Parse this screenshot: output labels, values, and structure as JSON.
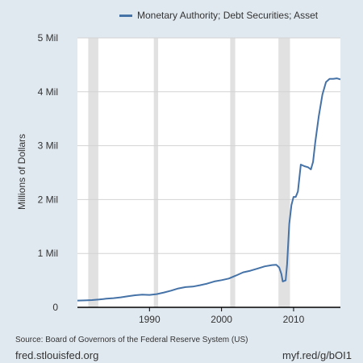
{
  "colors": {
    "background": "#e1e9f0",
    "plot_area": "#ffffff",
    "series": "#4572a7",
    "recession": "#e1e1e1",
    "gridline": "#d3d3d3",
    "axis": "#000000"
  },
  "footer": {
    "source": "Source: Board of Governors of the Federal Reserve System (US)",
    "site": "fred.stlouisfed.org",
    "short_url": "myf.red/g/bOI1"
  },
  "chart_data": {
    "type": "line",
    "title": "",
    "ylabel": "Millions of Dollars",
    "xlabel": "",
    "xlim": [
      1980,
      2016.5
    ],
    "ylim": [
      0,
      5000000
    ],
    "grid": true,
    "legend_position": "top",
    "x_ticks": [
      {
        "value": 1990,
        "label": "1990"
      },
      {
        "value": 2000,
        "label": "2000"
      },
      {
        "value": 2010,
        "label": "2010"
      }
    ],
    "y_ticks": [
      {
        "value": 0,
        "label": "0"
      },
      {
        "value": 1000000,
        "label": "1 Mil"
      },
      {
        "value": 2000000,
        "label": "2 Mil"
      },
      {
        "value": 3000000,
        "label": "3 Mil"
      },
      {
        "value": 4000000,
        "label": "4 Mil"
      },
      {
        "value": 5000000,
        "label": "5 Mil"
      }
    ],
    "recessions": [
      [
        1981.5,
        1982.9
      ],
      [
        1990.6,
        1991.2
      ],
      [
        2001.2,
        2001.9
      ],
      [
        2007.9,
        2009.5
      ]
    ],
    "series": [
      {
        "name": "Monetary Authority; Debt Securities; Asset",
        "points": [
          [
            1980.0,
            125000
          ],
          [
            1981.0,
            128000
          ],
          [
            1982.0,
            135000
          ],
          [
            1983.0,
            145000
          ],
          [
            1984.0,
            160000
          ],
          [
            1985.0,
            170000
          ],
          [
            1986.0,
            185000
          ],
          [
            1987.0,
            205000
          ],
          [
            1988.0,
            225000
          ],
          [
            1989.0,
            235000
          ],
          [
            1990.0,
            230000
          ],
          [
            1991.0,
            245000
          ],
          [
            1992.0,
            275000
          ],
          [
            1993.0,
            310000
          ],
          [
            1994.0,
            350000
          ],
          [
            1995.0,
            375000
          ],
          [
            1996.0,
            385000
          ],
          [
            1997.0,
            410000
          ],
          [
            1998.0,
            440000
          ],
          [
            1999.0,
            480000
          ],
          [
            2000.0,
            505000
          ],
          [
            2001.0,
            535000
          ],
          [
            2002.0,
            590000
          ],
          [
            2003.0,
            650000
          ],
          [
            2004.0,
            680000
          ],
          [
            2005.0,
            720000
          ],
          [
            2006.0,
            760000
          ],
          [
            2007.0,
            785000
          ],
          [
            2007.6,
            790000
          ],
          [
            2008.0,
            740000
          ],
          [
            2008.3,
            620000
          ],
          [
            2008.5,
            480000
          ],
          [
            2008.9,
            500000
          ],
          [
            2009.1,
            800000
          ],
          [
            2009.4,
            1550000
          ],
          [
            2009.7,
            1900000
          ],
          [
            2010.0,
            2050000
          ],
          [
            2010.3,
            2050000
          ],
          [
            2010.6,
            2150000
          ],
          [
            2011.0,
            2650000
          ],
          [
            2011.5,
            2620000
          ],
          [
            2012.0,
            2600000
          ],
          [
            2012.4,
            2560000
          ],
          [
            2012.7,
            2700000
          ],
          [
            2013.0,
            3050000
          ],
          [
            2013.5,
            3550000
          ],
          [
            2014.0,
            3950000
          ],
          [
            2014.5,
            4180000
          ],
          [
            2015.0,
            4240000
          ],
          [
            2015.5,
            4240000
          ],
          [
            2016.0,
            4250000
          ],
          [
            2016.5,
            4230000
          ]
        ]
      }
    ]
  }
}
